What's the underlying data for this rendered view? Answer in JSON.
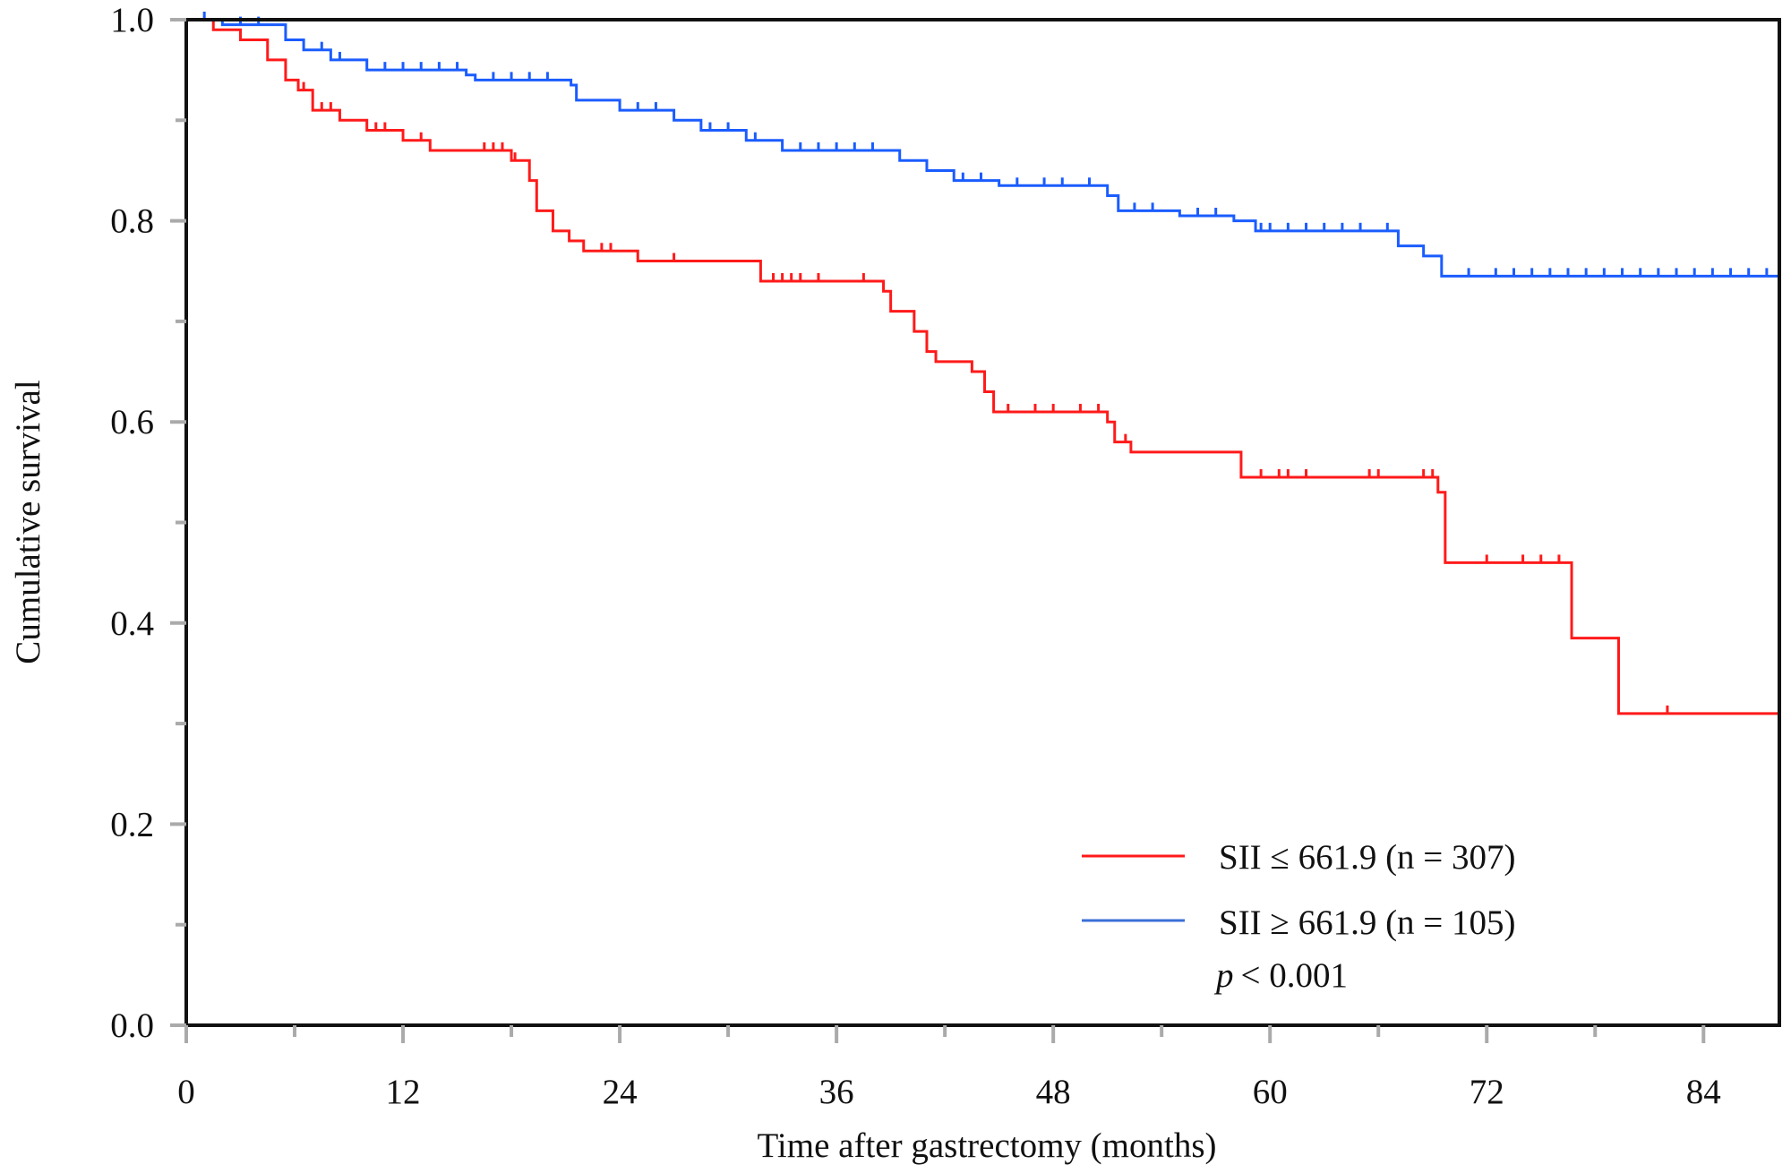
{
  "chart_data": {
    "type": "line",
    "subtype": "kaplan-meier step",
    "title": "",
    "xlabel": "Time after gastrectomy (months)",
    "ylabel": "Cumulative survival",
    "xlim": [
      0,
      88.2
    ],
    "ylim": [
      0,
      1.0
    ],
    "xticks": [
      0,
      12,
      24,
      36,
      48,
      60,
      72,
      84
    ],
    "xtick_labels": [
      "0",
      "12",
      "24",
      "36",
      "48",
      "60",
      "72",
      "84"
    ],
    "yticks": [
      0.0,
      0.2,
      0.4,
      0.6,
      0.8,
      1.0
    ],
    "ytick_labels": [
      "0.0",
      "0.2",
      "0.4",
      "0.6",
      "0.8",
      "1.0"
    ],
    "grid": false,
    "legend_position": "bottom-right",
    "annotation": {
      "p_symbol": "p",
      "p_text": "< 0.001"
    },
    "series": [
      {
        "name": "SII ≤ 661.9 (n = 307)",
        "color": "#ff1a1a",
        "steps": [
          [
            0,
            1.0
          ],
          [
            1.5,
            0.99
          ],
          [
            3,
            0.98
          ],
          [
            4.5,
            0.96
          ],
          [
            5.5,
            0.94
          ],
          [
            6.2,
            0.93
          ],
          [
            7,
            0.91
          ],
          [
            8.5,
            0.9
          ],
          [
            10,
            0.89
          ],
          [
            12,
            0.88
          ],
          [
            13.5,
            0.87
          ],
          [
            18,
            0.86
          ],
          [
            19,
            0.84
          ],
          [
            19.4,
            0.81
          ],
          [
            20.3,
            0.79
          ],
          [
            21.2,
            0.78
          ],
          [
            22,
            0.77
          ],
          [
            25,
            0.76
          ],
          [
            31.8,
            0.74
          ],
          [
            38.6,
            0.73
          ],
          [
            39,
            0.71
          ],
          [
            40.3,
            0.69
          ],
          [
            41,
            0.67
          ],
          [
            41.5,
            0.66
          ],
          [
            43.5,
            0.65
          ],
          [
            44.2,
            0.63
          ],
          [
            44.7,
            0.61
          ],
          [
            51,
            0.6
          ],
          [
            51.4,
            0.58
          ],
          [
            52.3,
            0.57
          ],
          [
            58.4,
            0.545
          ],
          [
            69.3,
            0.53
          ],
          [
            69.7,
            0.46
          ],
          [
            76.7,
            0.385
          ],
          [
            79.3,
            0.31
          ],
          [
            88.2,
            0.31
          ]
        ],
        "censored": [
          6.5,
          7.5,
          8,
          10.5,
          11,
          13,
          16.5,
          17,
          17.5,
          18.2,
          23,
          23.5,
          27,
          32.5,
          33,
          33.5,
          34,
          35,
          37.5,
          45.5,
          47,
          48,
          49.5,
          50.5,
          52,
          59.5,
          60.5,
          61,
          62,
          65.5,
          66,
          68.5,
          69,
          72,
          74,
          75,
          76,
          82
        ]
      },
      {
        "name": "SII ≥ 661.9 (n = 105)",
        "color": "#1a5cff",
        "steps": [
          [
            0,
            1.0
          ],
          [
            2,
            0.995
          ],
          [
            5.5,
            0.98
          ],
          [
            6.5,
            0.97
          ],
          [
            8,
            0.96
          ],
          [
            10,
            0.95
          ],
          [
            15.5,
            0.945
          ],
          [
            16,
            0.94
          ],
          [
            21.3,
            0.935
          ],
          [
            21.6,
            0.92
          ],
          [
            24,
            0.91
          ],
          [
            27,
            0.9
          ],
          [
            28.5,
            0.89
          ],
          [
            31,
            0.88
          ],
          [
            33,
            0.87
          ],
          [
            39.5,
            0.86
          ],
          [
            41,
            0.85
          ],
          [
            42.5,
            0.84
          ],
          [
            45,
            0.835
          ],
          [
            51,
            0.825
          ],
          [
            51.6,
            0.81
          ],
          [
            55,
            0.805
          ],
          [
            58,
            0.8
          ],
          [
            59.2,
            0.79
          ],
          [
            67.1,
            0.775
          ],
          [
            68.5,
            0.765
          ],
          [
            69.5,
            0.745
          ],
          [
            88.2,
            0.745
          ]
        ],
        "censored": [
          1,
          3,
          4,
          7.5,
          8.5,
          11,
          12,
          13,
          14,
          15,
          17,
          18,
          19,
          20,
          25,
          26,
          29,
          30,
          31.5,
          34,
          35,
          36,
          37,
          38,
          43,
          44,
          46,
          47.5,
          48.5,
          50,
          52.5,
          53.5,
          56,
          57,
          59.5,
          60,
          61,
          62,
          63,
          64,
          65,
          66.5,
          71,
          72.5,
          73.5,
          74.5,
          75.5,
          76.5,
          77.5,
          78.5,
          79.5,
          80.5,
          81.5,
          82.5,
          83.5,
          84.5,
          85.5,
          86.5,
          87.5
        ]
      }
    ]
  }
}
